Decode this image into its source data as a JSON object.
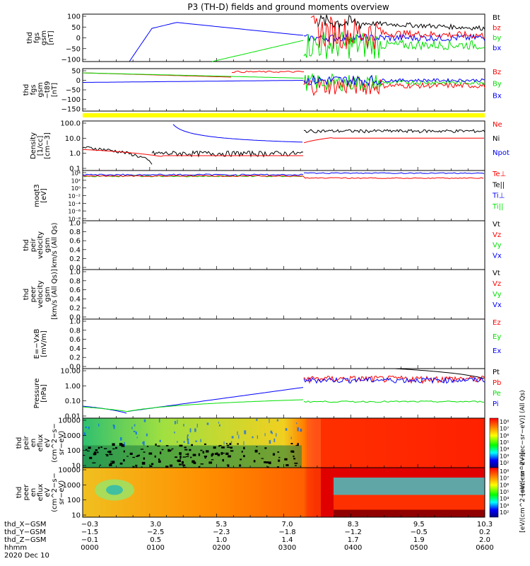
{
  "title": "P3 (TH-D) fields and ground moments overview",
  "date": "2020 Dec 10",
  "colors": {
    "black": "#000000",
    "red": "#ff0000",
    "green": "#00e000",
    "blue": "#0000ff",
    "yellow": "#ffff00"
  },
  "chart_data": [
    {
      "type": "line",
      "panel": "fgs",
      "ylabel_lines": [
        "thd",
        "fgs",
        "gsm",
        "[nT]"
      ],
      "ylim": [
        -100,
        100
      ],
      "yticks": [
        "100",
        "50",
        "0",
        "−50",
        "−100"
      ],
      "series": [
        {
          "name": "Bt",
          "color": "black"
        },
        {
          "name": "bz",
          "color": "red"
        },
        {
          "name": "by",
          "color": "green"
        },
        {
          "name": "bx",
          "color": "blue"
        }
      ]
    },
    {
      "type": "line",
      "panel": "fgs-model",
      "ylabel_lines": [
        "thd",
        "fgs",
        "gsm",
        "−t89",
        "[nT]"
      ],
      "ylim": [
        -150,
        50
      ],
      "yticks": [
        "50",
        "0",
        "−50",
        "−100",
        "−150"
      ],
      "series": [
        {
          "name": "Bz",
          "color": "red"
        },
        {
          "name": "By",
          "color": "green"
        },
        {
          "name": "Bx",
          "color": "blue"
        }
      ]
    },
    {
      "type": "line",
      "panel": "density",
      "ylabel_lines": [
        "Density",
        "[1/cc]",
        "[cm−3]"
      ],
      "log": true,
      "ylim": [
        0.1,
        100
      ],
      "yticks": [
        "100.0",
        "10.0",
        "1.0",
        "0.1"
      ],
      "series": [
        {
          "name": "Ne",
          "color": "red"
        },
        {
          "name": "Ni",
          "color": "black"
        },
        {
          "name": "Npot",
          "color": "blue"
        }
      ]
    },
    {
      "type": "line",
      "panel": "temperature",
      "ylabel_lines": [
        "moqt3",
        "[eV]"
      ],
      "log": true,
      "yticks": [
        "10⁴",
        "10²",
        "10⁰",
        "10⁻²",
        "10⁻⁴",
        "10⁻⁶",
        "10⁻⁸"
      ],
      "series": [
        {
          "name": "Te⊥",
          "color": "red"
        },
        {
          "name": "Te||",
          "color": "black"
        },
        {
          "name": "Ti⊥",
          "color": "blue"
        },
        {
          "name": "Ti||",
          "color": "green"
        }
      ]
    },
    {
      "type": "line",
      "panel": "peir-velocity",
      "ylabel_lines": [
        "thd",
        "peir",
        "velocity",
        "gsm",
        "km/s (All Qs)"
      ],
      "ylim": [
        0,
        1
      ],
      "yticks": [
        "1.0",
        "0.8",
        "0.6",
        "0.4",
        "0.2",
        "0.0"
      ],
      "series": [
        {
          "name": "Vt",
          "color": "black"
        },
        {
          "name": "Vz",
          "color": "red"
        },
        {
          "name": "Vy",
          "color": "green"
        },
        {
          "name": "Vx",
          "color": "blue"
        }
      ]
    },
    {
      "type": "line",
      "panel": "peer-velocity",
      "ylabel_lines": [
        "thd",
        "peer",
        "velocity",
        "gsm",
        "[km/s (All Qs)]"
      ],
      "ylim": [
        0,
        1
      ],
      "yticks": [
        "1.0",
        "0.8",
        "0.6",
        "0.4",
        "0.2",
        "0.0"
      ],
      "series": [
        {
          "name": "Vt",
          "color": "black"
        },
        {
          "name": "Vz",
          "color": "red"
        },
        {
          "name": "Vy",
          "color": "green"
        },
        {
          "name": "Vx",
          "color": "blue"
        }
      ]
    },
    {
      "type": "line",
      "panel": "efield",
      "ylabel_lines": [
        "E=−VxB",
        "[mV/m]"
      ],
      "ylim": [
        0,
        1
      ],
      "yticks": [
        "1.0",
        "0.8",
        "0.6",
        "0.4",
        "0.2",
        "0.0"
      ],
      "series": [
        {
          "name": "Ez",
          "color": "red"
        },
        {
          "name": "Ey",
          "color": "green"
        },
        {
          "name": "Ex",
          "color": "blue"
        }
      ]
    },
    {
      "type": "line",
      "panel": "pressure",
      "ylabel_lines": [
        "Pressure",
        "[nPa]"
      ],
      "log": true,
      "ylim": [
        0.01,
        10
      ],
      "yticks": [
        "10.00",
        "1.00",
        "0.10",
        "0.01"
      ],
      "series": [
        {
          "name": "Pt",
          "color": "black"
        },
        {
          "name": "Pb",
          "color": "red"
        },
        {
          "name": "Pe",
          "color": "green"
        },
        {
          "name": "Pi",
          "color": "blue"
        }
      ]
    },
    {
      "type": "heatmap",
      "panel": "peir-spectrogram",
      "ylabel_lines": [
        "thd",
        "peir",
        "en",
        "eflux",
        "eV",
        "(cm^2−s−",
        "sr−eV)"
      ],
      "yticks": [
        "10000",
        "1000",
        "100",
        "10"
      ],
      "cbar_ticks": [
        "10⁸",
        "10⁷",
        "10⁶",
        "10⁵",
        "10⁴",
        "10³",
        "10²"
      ],
      "cbar_label": "[eV/(cm^2−sec−sr−eV)] (All Qs)"
    },
    {
      "type": "heatmap",
      "panel": "peer-spectrogram",
      "ylabel_lines": [
        "thd",
        "peer",
        "en",
        "eflux",
        "eV",
        "(cm^2−s−",
        "sr−eV)"
      ],
      "yticks": [
        "10000",
        "1000",
        "100",
        "10"
      ],
      "cbar_ticks": [
        "10⁸",
        "10⁷",
        "10⁶",
        "10⁵",
        "10⁴",
        "10³",
        "10²"
      ],
      "cbar_label": "[eV/(cm^2−sec−sr−eV)]"
    }
  ],
  "xaxis": {
    "rows": [
      {
        "label": "thd_X−GSM",
        "values": [
          "−0.3",
          "3.0",
          "5.3",
          "7.0",
          "8.3",
          "9.5",
          "10.3"
        ]
      },
      {
        "label": "thd_Y−GSM",
        "values": [
          "−1.5",
          "−2.5",
          "−2.3",
          "−1.8",
          "−1.2",
          "−0.5",
          "0.2"
        ]
      },
      {
        "label": "thd_Z−GSM",
        "values": [
          "−0.1",
          "0.5",
          "1.0",
          "1.4",
          "1.7",
          "1.9",
          "2.0"
        ]
      },
      {
        "label": "hhmm",
        "values": [
          "0000",
          "0100",
          "0200",
          "0300",
          "0400",
          "0500",
          "0600"
        ]
      }
    ]
  }
}
